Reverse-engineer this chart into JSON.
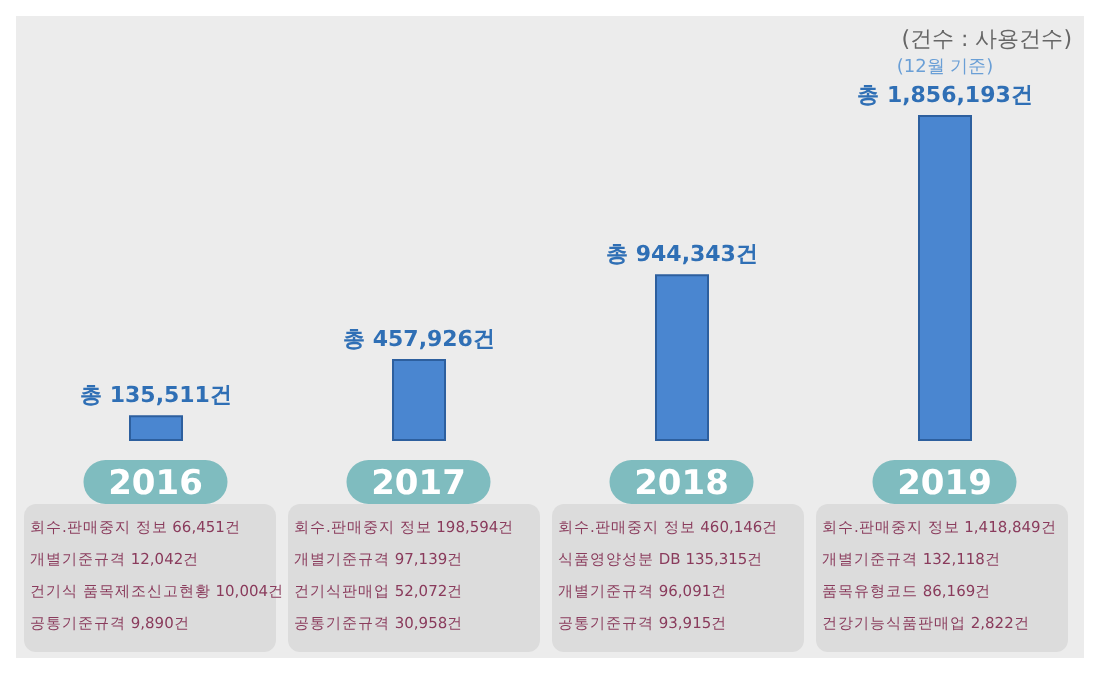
{
  "chart_data": {
    "type": "bar",
    "categories": [
      "2016",
      "2017",
      "2018",
      "2019"
    ],
    "values": [
      135511,
      457926,
      944343,
      1856193
    ],
    "color": "#4a86d0",
    "value_labels": [
      "총 135,511건",
      "총 457,926건",
      "총 944,343건",
      "총 1,856,193건"
    ],
    "annotations": [
      "(건수 : 사용건수)",
      "(12월 기준)",
      "회수.판매중지 정보  66,451건",
      "개별기준규격  12,042건",
      "건기식 품목제조신고현황  10,004건",
      "공통기준규격  9,890건",
      "회수.판매중지 정보  198,594건",
      "개별기준규격  97,139건",
      "건기식판매업  52,072건",
      "공통기준규격  30,958건",
      "회수.판매중지 정보  460,146건",
      "식품영양성분 DB  135,315건",
      "개별기준규격  96,091건",
      "공통기준규격  93,915건",
      "회수.판매중지 정보  1,418,849건",
      "개별기준규격  132,118건",
      "품목유형코드  86,169건",
      "건강기능식품판매업  2,822건"
    ]
  }
}
